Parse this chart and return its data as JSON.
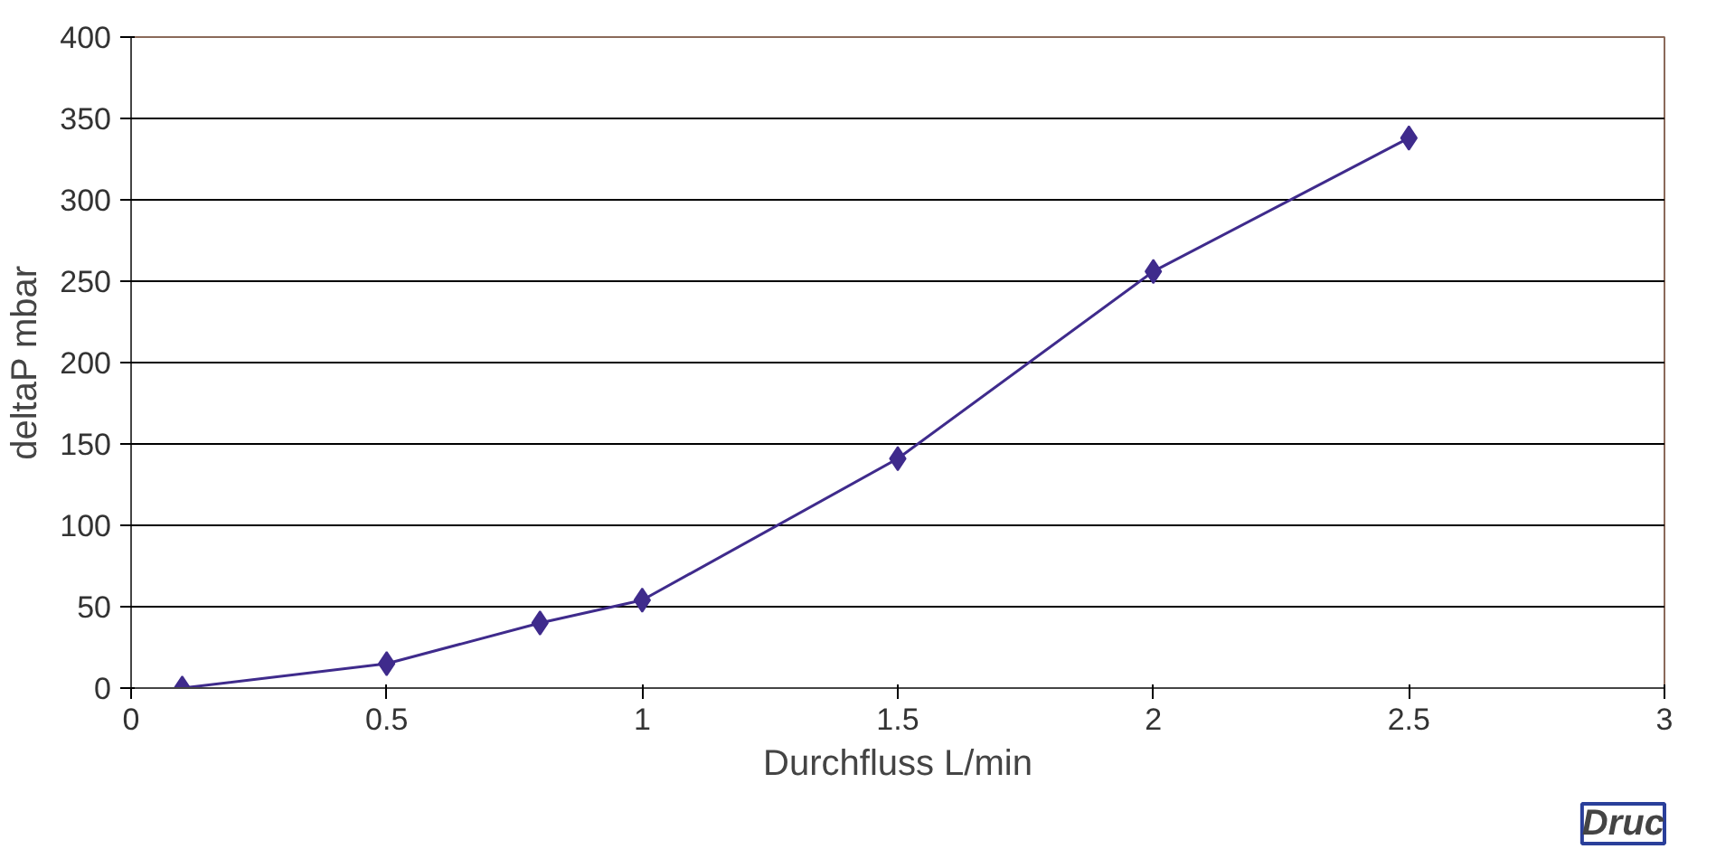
{
  "chart_data": {
    "type": "line",
    "xlabel": "Durchfluss L/min",
    "ylabel": "deltaP mbar",
    "x": [
      0.1,
      0.5,
      0.8,
      1,
      1.5,
      2,
      2.5
    ],
    "series": [
      {
        "color": "#3f2b8c",
        "values": [
          0,
          15,
          40,
          54,
          141,
          256,
          338
        ]
      }
    ],
    "xlim": [
      0,
      3
    ],
    "xticks": [
      0,
      0.5,
      1,
      1.5,
      2,
      2.5,
      3
    ],
    "ylim": [
      0,
      400
    ],
    "yticks": [
      0,
      50,
      100,
      150,
      200,
      250,
      300,
      350,
      400
    ],
    "grid": "y",
    "marker": "diamond",
    "line_style": "solid",
    "annotations": [
      "Druc"
    ]
  }
}
